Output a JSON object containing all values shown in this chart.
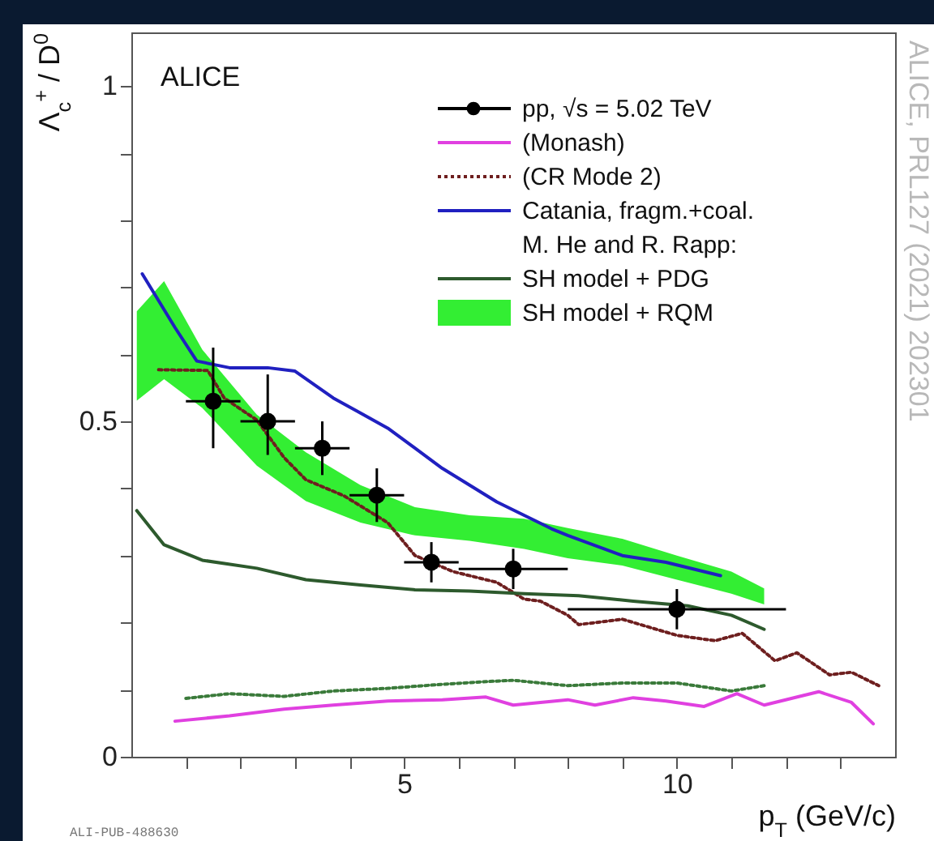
{
  "chart_data": {
    "type": "line",
    "xlabel": "p$_{T}$ (GeV/c)",
    "ylabel": "Λ$_{c}$$^{+}$ / D$^{0}$",
    "xlim": [
      0,
      14
    ],
    "ylim": [
      0,
      1.08
    ],
    "xticks": [
      {
        "value": 1,
        "label": null
      },
      {
        "value": 2,
        "label": null
      },
      {
        "value": 3,
        "label": null
      },
      {
        "value": 4,
        "label": null
      },
      5,
      {
        "value": 6,
        "label": null
      },
      {
        "value": 7,
        "label": null
      },
      {
        "value": 8,
        "label": null
      },
      {
        "value": 9,
        "label": null
      },
      10,
      {
        "value": 11,
        "label": null
      },
      {
        "value": 12,
        "label": null
      },
      {
        "value": 13,
        "label": null
      }
    ],
    "yticks": [
      0,
      {
        "value": 0.1,
        "label": null
      },
      {
        "value": 0.2,
        "label": null
      },
      {
        "value": 0.3,
        "label": null
      },
      {
        "value": 0.4,
        "label": null
      },
      0.5,
      {
        "value": 0.6,
        "label": null
      },
      {
        "value": 0.7,
        "label": null
      },
      {
        "value": 0.8,
        "label": null
      },
      {
        "value": 0.9,
        "label": null
      },
      1
    ],
    "legend": "top right",
    "annotations": [
      "ALICE",
      "M. He and R. Rapp:",
      "ALICE, PRL127 (2021) 202301",
      "ALI-PUB-488630"
    ],
    "series": [
      {
        "name": "pp, √s = 5.02 TeV",
        "type": "scatter",
        "marker": "circle",
        "color": "#000000",
        "x": [
          1.5,
          2.5,
          3.5,
          4.5,
          5.5,
          7,
          10
        ],
        "values": [
          0.53,
          0.5,
          0.46,
          0.39,
          0.29,
          0.28,
          0.22
        ],
        "errors": [
          [
            0.46,
            0.61
          ],
          [
            0.45,
            0.57
          ],
          [
            0.42,
            0.5
          ],
          [
            0.35,
            0.43
          ],
          [
            0.26,
            0.32
          ],
          [
            0.25,
            0.31
          ],
          [
            0.19,
            0.25
          ]
        ],
        "xerrors": [
          [
            1,
            2
          ],
          [
            2,
            3
          ],
          [
            3,
            4
          ],
          [
            4,
            5
          ],
          [
            5,
            6
          ],
          [
            6,
            8
          ],
          [
            8,
            12
          ]
        ]
      },
      {
        "name": "(Monash)",
        "type": "line",
        "color": "#e040e0",
        "x": [
          0.8,
          1.8,
          2.8,
          3.7,
          4.7,
          5.7,
          6.5,
          7,
          8,
          8.5,
          9.2,
          9.8,
          10.5,
          11.1,
          11.6,
          12.6,
          13.2,
          13.6
        ],
        "values": [
          0.053,
          0.061,
          0.071,
          0.077,
          0.083,
          0.085,
          0.089,
          0.077,
          0.085,
          0.077,
          0.088,
          0.083,
          0.075,
          0.094,
          0.077,
          0.097,
          0.081,
          0.049
        ]
      },
      {
        "name": "(CR Mode 2)",
        "type": "line",
        "line_style": "dotted",
        "color": "#6e1f1f",
        "x": [
          0.5,
          1.4,
          1.7,
          2.3,
          2.8,
          3.2,
          3.9,
          4.7,
          5.2,
          5.9,
          6.7,
          7.2,
          7.5,
          8,
          8.2,
          9,
          10,
          10.7,
          11.2,
          11.8,
          12.2,
          12.8,
          13.2,
          13.7
        ],
        "values": [
          0.577,
          0.576,
          0.535,
          0.502,
          0.446,
          0.413,
          0.389,
          0.349,
          0.3,
          0.276,
          0.26,
          0.235,
          0.232,
          0.211,
          0.197,
          0.205,
          0.181,
          0.173,
          0.184,
          0.143,
          0.155,
          0.122,
          0.126,
          0.106
        ]
      },
      {
        "type": "line",
        "line_style": "dotted",
        "color": "#3a7a3a",
        "x": [
          1,
          1.8,
          2.8,
          3.7,
          4.7,
          5.7,
          6.5,
          7,
          8,
          9,
          10,
          11,
          11.6
        ],
        "values": [
          0.087,
          0.094,
          0.09,
          0.098,
          0.102,
          0.108,
          0.112,
          0.114,
          0.106,
          0.11,
          0.11,
          0.098,
          0.106
        ]
      },
      {
        "name": "Catania, fragm.+coal.",
        "type": "line",
        "color": "#2020c0",
        "x": [
          0.2,
          0.8,
          1.2,
          1.8,
          2.5,
          3,
          3.7,
          4.7,
          5.7,
          6.7,
          7.7,
          8,
          9,
          9.8,
          10.8
        ],
        "values": [
          0.72,
          0.64,
          0.59,
          0.58,
          0.58,
          0.575,
          0.535,
          0.49,
          0.43,
          0.38,
          0.34,
          0.33,
          0.3,
          0.29,
          0.27
        ]
      },
      {
        "name": "SH model + PDG",
        "type": "line",
        "color": "#2d5a2d",
        "x": [
          0.1,
          0.6,
          1.3,
          2.3,
          3.2,
          4.2,
          5.2,
          6.2,
          7.2,
          8.2,
          9.2,
          10.2,
          11,
          11.6
        ],
        "values": [
          0.367,
          0.316,
          0.293,
          0.281,
          0.264,
          0.256,
          0.249,
          0.247,
          0.243,
          0.24,
          0.232,
          0.225,
          0.211,
          0.19
        ]
      },
      {
        "name": "SH model + RQM",
        "type": "area",
        "color": "#33ee33",
        "x": [
          0.1,
          0.6,
          1.3,
          2.3,
          3.2,
          4.2,
          5.2,
          6.2,
          7.2,
          8,
          9,
          10,
          11,
          11.6
        ],
        "values": [
          null,
          null,
          null,
          null,
          null,
          null,
          null,
          null,
          null,
          null,
          null,
          null,
          null,
          null
        ],
        "upper": [
          0.664,
          0.709,
          0.607,
          0.51,
          0.454,
          0.405,
          0.372,
          0.36,
          0.355,
          0.341,
          0.325,
          0.3,
          0.276,
          0.251
        ],
        "lower": [
          0.531,
          0.563,
          0.52,
          0.434,
          0.381,
          0.349,
          0.33,
          0.322,
          0.31,
          0.296,
          0.285,
          0.264,
          0.243,
          0.227
        ]
      }
    ]
  }
}
